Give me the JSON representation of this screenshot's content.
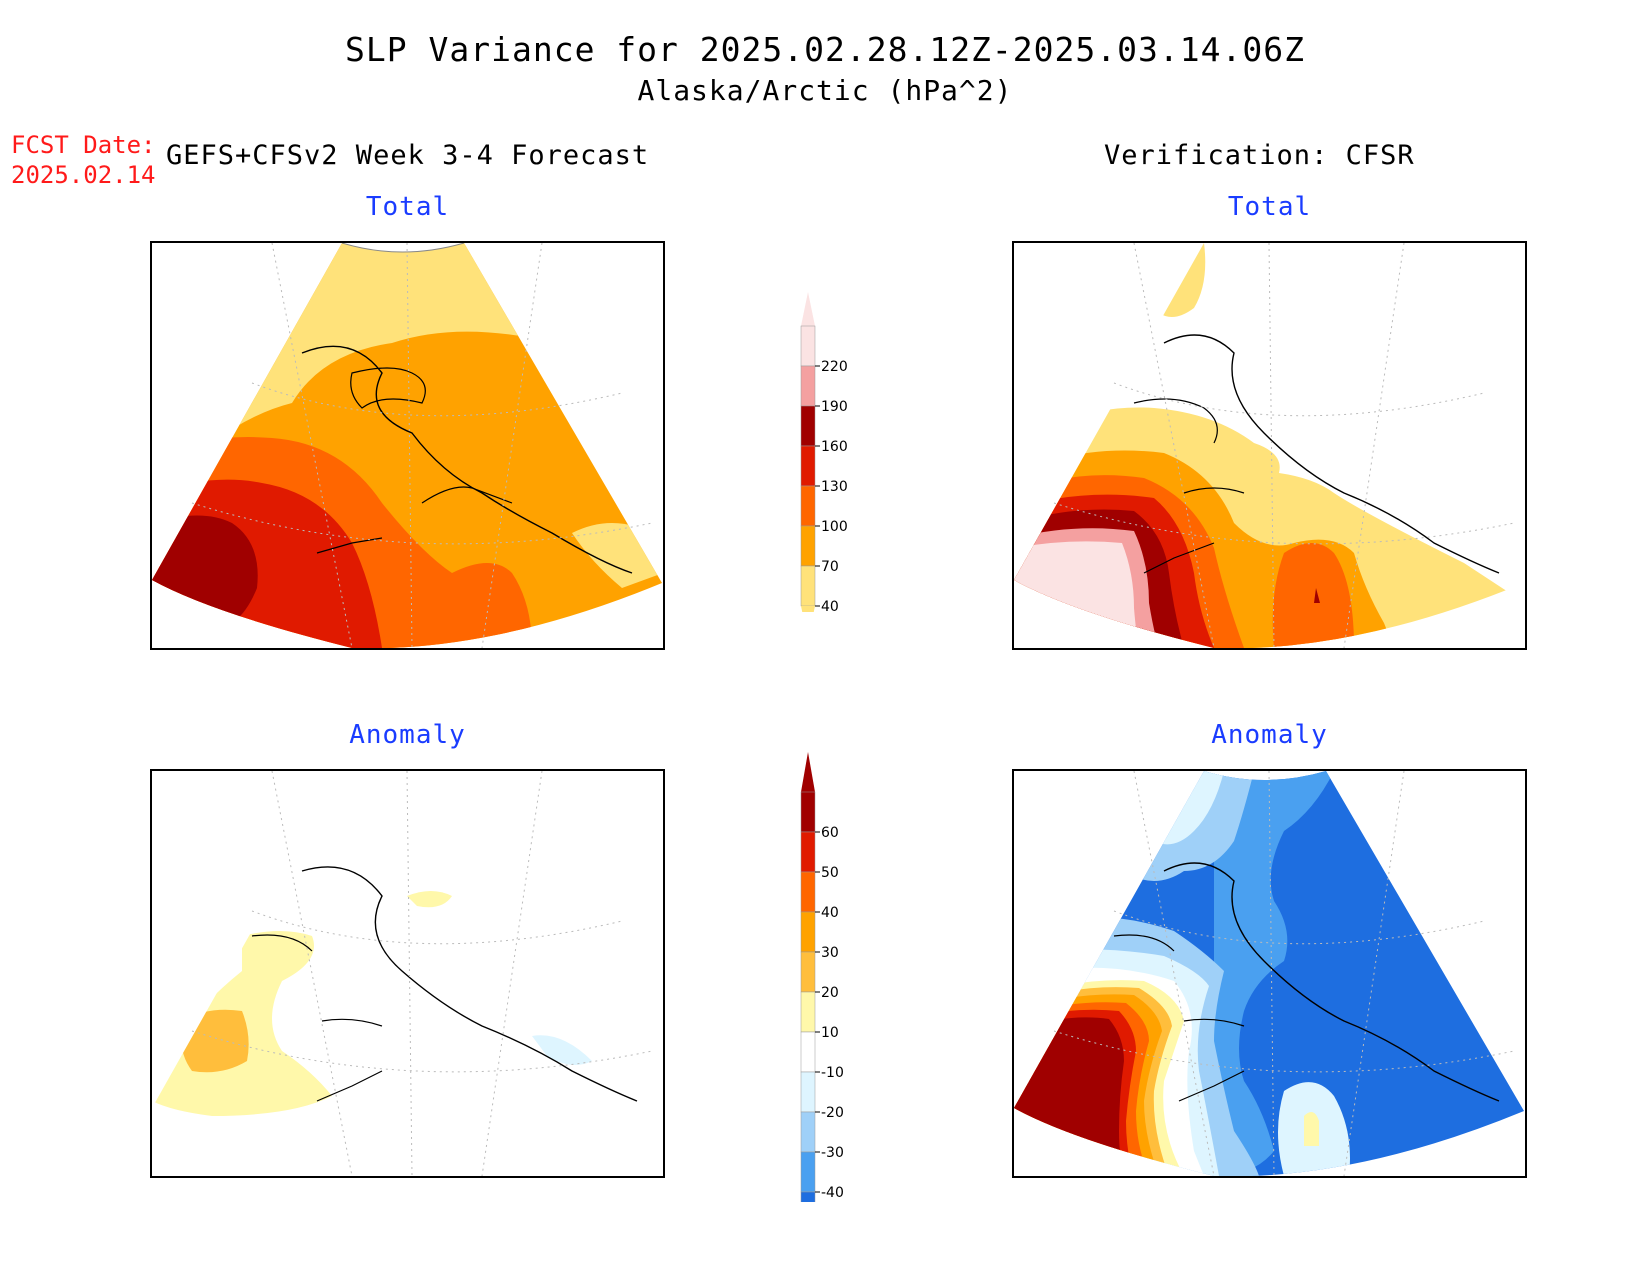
{
  "header": {
    "title": "SLP Variance for 2025.02.28.12Z-2025.03.14.06Z",
    "subtitle": "Alaska/Arctic (hPa^2)"
  },
  "forecast_info": {
    "fcst_label": "FCST Date:",
    "fcst_date": "2025.02.14",
    "model": "GEFS+CFSv2 Week 3-4 Forecast",
    "verification": "Verification: CFSR"
  },
  "panels": {
    "forecast_total_title": "Total",
    "verification_total_title": "Total",
    "forecast_anomaly_title": "Anomaly",
    "verification_anomaly_title": "Anomaly"
  },
  "colorbar_total": {
    "levels": [
      "220",
      "190",
      "160",
      "130",
      "100",
      "70",
      "40"
    ],
    "colors": [
      "#fbe3e3",
      "#f4a0a0",
      "#a00000",
      "#e01a00",
      "#ff6600",
      "#ffa200",
      "#ffe27a"
    ]
  },
  "colorbar_anomaly": {
    "levels": [
      "60",
      "50",
      "40",
      "30",
      "20",
      "10",
      "-10",
      "-20",
      "-30",
      "-40"
    ],
    "colors": [
      "#a00000",
      "#e01a00",
      "#ff6600",
      "#ffa200",
      "#ffbe3c",
      "#fff8aa",
      "#ffffff",
      "#def5ff",
      "#9fd0f8",
      "#4aa0f0",
      "#1e6ee0"
    ]
  }
}
